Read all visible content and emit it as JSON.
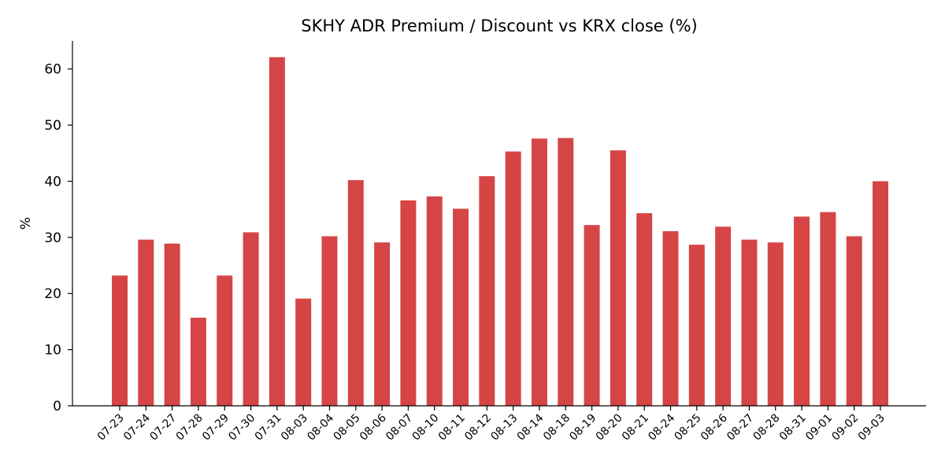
{
  "chart_data": {
    "type": "bar",
    "title": "SKHY ADR Premium / Discount vs KRX close (%)",
    "xlabel": "",
    "ylabel": "%",
    "ylim": [
      0,
      65
    ],
    "yticks": [
      0,
      10,
      20,
      30,
      40,
      50,
      60
    ],
    "grid": false,
    "legend": "none",
    "bar_color": "#d64545",
    "categories": [
      "07-23",
      "07-24",
      "07-27",
      "07-28",
      "07-29",
      "07-30",
      "07-31",
      "08-03",
      "08-04",
      "08-05",
      "08-06",
      "08-07",
      "08-10",
      "08-11",
      "08-12",
      "08-13",
      "08-14",
      "08-18",
      "08-19",
      "08-20",
      "08-21",
      "08-24",
      "08-25",
      "08-26",
      "08-27",
      "08-28",
      "08-31",
      "09-01",
      "09-02",
      "09-03"
    ],
    "values": [
      23.2,
      29.6,
      28.9,
      15.7,
      23.2,
      30.9,
      62.1,
      19.1,
      30.2,
      40.2,
      29.1,
      36.6,
      37.3,
      35.1,
      40.9,
      45.3,
      47.6,
      47.7,
      32.2,
      45.5,
      34.3,
      31.1,
      28.7,
      31.9,
      29.6,
      29.1,
      33.7,
      34.5,
      30.2,
      40.0
    ]
  }
}
